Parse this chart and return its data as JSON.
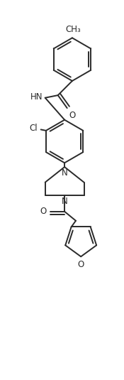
{
  "bg_color": "#ffffff",
  "line_color": "#2a2a2a",
  "line_width": 1.4,
  "font_size": 8.5,
  "xlim": [
    -1.1,
    1.3
  ],
  "ylim": [
    -1.8,
    5.6
  ],
  "figsize": [
    1.75,
    5.35
  ],
  "dpi": 100
}
